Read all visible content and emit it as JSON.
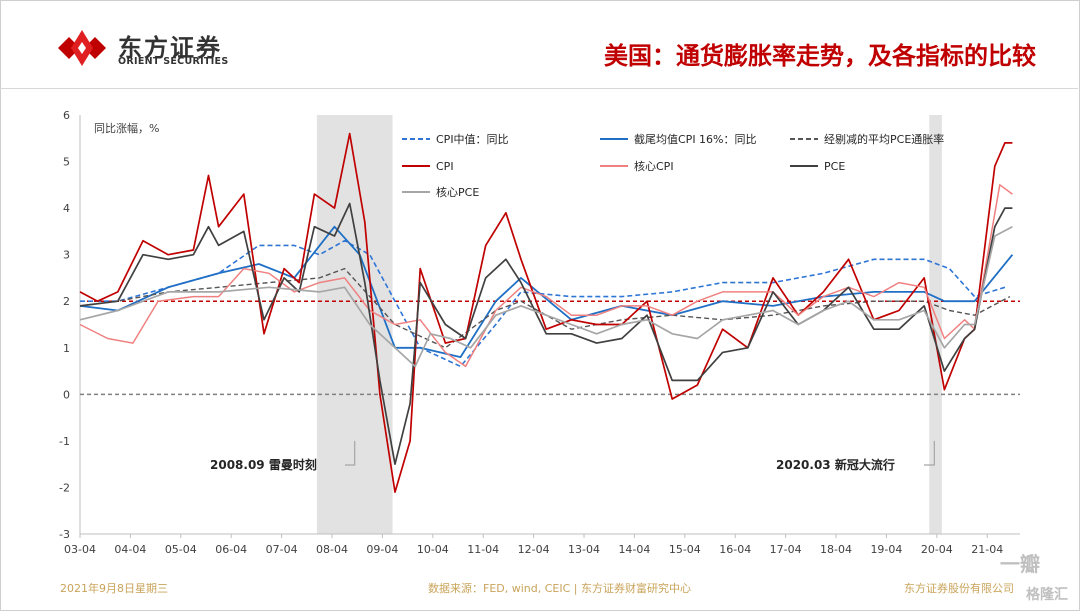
{
  "header": {
    "logo_cn": "东方证券",
    "logo_en": "ORIENT SECURITIES",
    "title": "美国：通货膨胀率走势，及各指标的比较"
  },
  "footer": {
    "date": "2021年9月8日星期三",
    "source": "数据来源：FED, wind, CEIC | 东方证券财富研究中心",
    "company": "东方证券股份有限公司"
  },
  "watermark": {
    "text1": "一瓣",
    "text2": "格隆汇"
  },
  "colors": {
    "brand_red": "#c00000",
    "cpi_median": "#2e75d6",
    "trimmed_cpi": "#1f6fc5",
    "trimmed_pce": "#555555",
    "cpi": "#c00000",
    "core_cpi": "#f08080",
    "pce": "#404040",
    "core_pce": "#a6a6a6",
    "recession": "#e2e2e2"
  },
  "chart_data": {
    "type": "line",
    "ylabel": "同比涨幅，%",
    "ylim": [
      -3,
      6
    ],
    "yticks": [
      -3,
      -2,
      -1,
      0,
      1,
      2,
      3,
      4,
      5,
      6
    ],
    "xlim": [
      2003.25,
      2021.9
    ],
    "xticks": [
      "03-04",
      "04-04",
      "05-04",
      "06-04",
      "07-04",
      "08-04",
      "09-04",
      "10-04",
      "11-04",
      "12-04",
      "13-04",
      "14-04",
      "15-04",
      "16-04",
      "17-04",
      "18-04",
      "19-04",
      "20-04",
      "21-04"
    ],
    "reference_lines": [
      {
        "value": 2,
        "style": "dashed",
        "color": "#c00000"
      },
      {
        "value": 0,
        "style": "dashed",
        "color": "#808080"
      }
    ],
    "recessions": [
      {
        "start": 2007.95,
        "end": 2009.45
      },
      {
        "start": 2020.1,
        "end": 2020.35
      }
    ],
    "annotations": [
      {
        "text": "2008.09 雷曼时刻",
        "x": 2008.7,
        "y": -1.6
      },
      {
        "text": "2020.03 新冠大流行",
        "x": 2020.2,
        "y": -1.6
      }
    ],
    "legend": [
      "CPI中值：同比",
      "截尾均值CPI 16%：同比",
      "经剔减的平均PCE通胀率",
      "CPI",
      "核心CPI",
      "PCE",
      "核心PCE"
    ],
    "series": [
      {
        "name": "CPI中值：同比",
        "color": "#2e75d6",
        "dash": "dashed",
        "width": 1.6,
        "points": [
          [
            2003.25,
            2.0
          ],
          [
            2004.0,
            2.0
          ],
          [
            2005.0,
            2.3
          ],
          [
            2006.0,
            2.6
          ],
          [
            2006.8,
            3.2
          ],
          [
            2007.5,
            3.2
          ],
          [
            2008.0,
            3.0
          ],
          [
            2008.5,
            3.3
          ],
          [
            2009.0,
            3.0
          ],
          [
            2009.5,
            2.0
          ],
          [
            2010.0,
            1.0
          ],
          [
            2010.8,
            0.6
          ],
          [
            2011.5,
            1.5
          ],
          [
            2012.0,
            2.2
          ],
          [
            2013.0,
            2.1
          ],
          [
            2014.0,
            2.1
          ],
          [
            2015.0,
            2.2
          ],
          [
            2016.0,
            2.4
          ],
          [
            2017.0,
            2.4
          ],
          [
            2018.0,
            2.6
          ],
          [
            2019.0,
            2.9
          ],
          [
            2020.0,
            2.9
          ],
          [
            2020.5,
            2.7
          ],
          [
            2021.0,
            2.1
          ],
          [
            2021.6,
            2.3
          ]
        ]
      },
      {
        "name": "截尾均值CPI 16%：同比",
        "color": "#1f6fc5",
        "dash": "solid",
        "width": 1.8,
        "points": [
          [
            2003.25,
            1.9
          ],
          [
            2004.0,
            1.8
          ],
          [
            2005.0,
            2.3
          ],
          [
            2006.0,
            2.6
          ],
          [
            2006.8,
            2.8
          ],
          [
            2007.5,
            2.5
          ],
          [
            2008.3,
            3.6
          ],
          [
            2008.8,
            3.0
          ],
          [
            2009.5,
            1.0
          ],
          [
            2010.0,
            1.0
          ],
          [
            2010.8,
            0.8
          ],
          [
            2011.5,
            2.0
          ],
          [
            2012.0,
            2.5
          ],
          [
            2013.0,
            1.6
          ],
          [
            2014.0,
            1.9
          ],
          [
            2015.0,
            1.7
          ],
          [
            2016.0,
            2.0
          ],
          [
            2017.0,
            1.9
          ],
          [
            2018.0,
            2.1
          ],
          [
            2019.0,
            2.2
          ],
          [
            2020.0,
            2.2
          ],
          [
            2020.4,
            2.0
          ],
          [
            2021.0,
            2.0
          ],
          [
            2021.75,
            3.0
          ]
        ]
      },
      {
        "name": "经剔减的平均PCE通胀率",
        "color": "#555555",
        "dash": "dashed",
        "width": 1.4,
        "points": [
          [
            2003.25,
            1.9
          ],
          [
            2004.0,
            2.0
          ],
          [
            2005.0,
            2.2
          ],
          [
            2006.0,
            2.3
          ],
          [
            2007.0,
            2.4
          ],
          [
            2008.0,
            2.5
          ],
          [
            2008.5,
            2.7
          ],
          [
            2009.5,
            1.5
          ],
          [
            2010.5,
            1.0
          ],
          [
            2011.5,
            1.8
          ],
          [
            2012.0,
            2.0
          ],
          [
            2013.0,
            1.4
          ],
          [
            2014.0,
            1.6
          ],
          [
            2015.0,
            1.7
          ],
          [
            2016.0,
            1.6
          ],
          [
            2017.0,
            1.7
          ],
          [
            2018.0,
            1.9
          ],
          [
            2019.0,
            2.0
          ],
          [
            2020.0,
            2.0
          ],
          [
            2020.5,
            1.8
          ],
          [
            2021.0,
            1.7
          ],
          [
            2021.7,
            2.1
          ]
        ]
      },
      {
        "name": "CPI",
        "color": "#c00000",
        "dash": "solid",
        "width": 1.7,
        "points": [
          [
            2003.25,
            2.2
          ],
          [
            2003.6,
            2.0
          ],
          [
            2004.0,
            2.2
          ],
          [
            2004.5,
            3.3
          ],
          [
            2005.0,
            3.0
          ],
          [
            2005.5,
            3.1
          ],
          [
            2005.8,
            4.7
          ],
          [
            2006.0,
            3.6
          ],
          [
            2006.5,
            4.3
          ],
          [
            2006.9,
            1.3
          ],
          [
            2007.3,
            2.7
          ],
          [
            2007.6,
            2.4
          ],
          [
            2007.9,
            4.3
          ],
          [
            2008.3,
            4.0
          ],
          [
            2008.6,
            5.6
          ],
          [
            2008.9,
            3.7
          ],
          [
            2009.2,
            0.0
          ],
          [
            2009.5,
            -2.1
          ],
          [
            2009.8,
            -1.0
          ],
          [
            2010.0,
            2.7
          ],
          [
            2010.5,
            1.1
          ],
          [
            2010.9,
            1.2
          ],
          [
            2011.3,
            3.2
          ],
          [
            2011.7,
            3.9
          ],
          [
            2012.0,
            2.9
          ],
          [
            2012.5,
            1.4
          ],
          [
            2013.0,
            1.6
          ],
          [
            2013.5,
            1.5
          ],
          [
            2014.0,
            1.5
          ],
          [
            2014.5,
            2.0
          ],
          [
            2015.0,
            -0.1
          ],
          [
            2015.5,
            0.2
          ],
          [
            2016.0,
            1.4
          ],
          [
            2016.5,
            1.0
          ],
          [
            2017.0,
            2.5
          ],
          [
            2017.5,
            1.7
          ],
          [
            2018.0,
            2.2
          ],
          [
            2018.5,
            2.9
          ],
          [
            2019.0,
            1.6
          ],
          [
            2019.5,
            1.8
          ],
          [
            2020.0,
            2.5
          ],
          [
            2020.4,
            0.1
          ],
          [
            2020.8,
            1.2
          ],
          [
            2021.0,
            1.4
          ],
          [
            2021.4,
            4.9
          ],
          [
            2021.6,
            5.4
          ],
          [
            2021.75,
            5.4
          ]
        ]
      },
      {
        "name": "核心CPI",
        "color": "#f08080",
        "dash": "solid",
        "width": 1.5,
        "points": [
          [
            2003.25,
            1.5
          ],
          [
            2003.8,
            1.2
          ],
          [
            2004.3,
            1.1
          ],
          [
            2004.8,
            2.0
          ],
          [
            2005.5,
            2.1
          ],
          [
            2006.0,
            2.1
          ],
          [
            2006.5,
            2.7
          ],
          [
            2007.0,
            2.6
          ],
          [
            2007.5,
            2.2
          ],
          [
            2008.0,
            2.4
          ],
          [
            2008.5,
            2.5
          ],
          [
            2009.0,
            1.8
          ],
          [
            2009.5,
            1.5
          ],
          [
            2010.0,
            1.6
          ],
          [
            2010.5,
            0.9
          ],
          [
            2010.9,
            0.6
          ],
          [
            2011.5,
            1.8
          ],
          [
            2012.0,
            2.3
          ],
          [
            2012.5,
            2.1
          ],
          [
            2013.0,
            1.7
          ],
          [
            2013.5,
            1.7
          ],
          [
            2014.0,
            1.9
          ],
          [
            2014.5,
            1.9
          ],
          [
            2015.0,
            1.7
          ],
          [
            2015.5,
            2.0
          ],
          [
            2016.0,
            2.2
          ],
          [
            2016.5,
            2.2
          ],
          [
            2017.0,
            2.2
          ],
          [
            2017.5,
            1.7
          ],
          [
            2018.0,
            2.1
          ],
          [
            2018.5,
            2.3
          ],
          [
            2019.0,
            2.1
          ],
          [
            2019.5,
            2.4
          ],
          [
            2020.0,
            2.3
          ],
          [
            2020.4,
            1.2
          ],
          [
            2020.8,
            1.6
          ],
          [
            2021.0,
            1.4
          ],
          [
            2021.5,
            4.5
          ],
          [
            2021.75,
            4.3
          ]
        ]
      },
      {
        "name": "PCE",
        "color": "#404040",
        "dash": "solid",
        "width": 1.7,
        "points": [
          [
            2003.25,
            1.9
          ],
          [
            2004.0,
            2.0
          ],
          [
            2004.5,
            3.0
          ],
          [
            2005.0,
            2.9
          ],
          [
            2005.5,
            3.0
          ],
          [
            2005.8,
            3.6
          ],
          [
            2006.0,
            3.2
          ],
          [
            2006.5,
            3.5
          ],
          [
            2006.9,
            1.6
          ],
          [
            2007.3,
            2.5
          ],
          [
            2007.6,
            2.2
          ],
          [
            2007.9,
            3.6
          ],
          [
            2008.3,
            3.4
          ],
          [
            2008.6,
            4.1
          ],
          [
            2008.9,
            2.4
          ],
          [
            2009.2,
            0.3
          ],
          [
            2009.5,
            -1.5
          ],
          [
            2009.8,
            -0.2
          ],
          [
            2010.0,
            2.4
          ],
          [
            2010.5,
            1.5
          ],
          [
            2010.9,
            1.2
          ],
          [
            2011.3,
            2.5
          ],
          [
            2011.7,
            2.9
          ],
          [
            2012.0,
            2.4
          ],
          [
            2012.5,
            1.3
          ],
          [
            2013.0,
            1.3
          ],
          [
            2013.5,
            1.1
          ],
          [
            2014.0,
            1.2
          ],
          [
            2014.5,
            1.7
          ],
          [
            2015.0,
            0.3
          ],
          [
            2015.5,
            0.3
          ],
          [
            2016.0,
            0.9
          ],
          [
            2016.5,
            1.0
          ],
          [
            2017.0,
            2.2
          ],
          [
            2017.5,
            1.5
          ],
          [
            2018.0,
            1.8
          ],
          [
            2018.5,
            2.3
          ],
          [
            2019.0,
            1.4
          ],
          [
            2019.5,
            1.4
          ],
          [
            2020.0,
            1.9
          ],
          [
            2020.4,
            0.5
          ],
          [
            2020.8,
            1.2
          ],
          [
            2021.0,
            1.4
          ],
          [
            2021.4,
            3.6
          ],
          [
            2021.6,
            4.0
          ],
          [
            2021.75,
            4.0
          ]
        ]
      },
      {
        "name": "核心PCE",
        "color": "#a6a6a6",
        "dash": "solid",
        "width": 1.7,
        "points": [
          [
            2003.25,
            1.6
          ],
          [
            2004.0,
            1.8
          ],
          [
            2005.0,
            2.2
          ],
          [
            2006.0,
            2.2
          ],
          [
            2007.0,
            2.3
          ],
          [
            2008.0,
            2.2
          ],
          [
            2008.5,
            2.3
          ],
          [
            2009.0,
            1.5
          ],
          [
            2009.5,
            1.0
          ],
          [
            2009.9,
            0.6
          ],
          [
            2010.2,
            1.3
          ],
          [
            2010.6,
            1.2
          ],
          [
            2011.0,
            1.0
          ],
          [
            2011.5,
            1.7
          ],
          [
            2012.0,
            1.9
          ],
          [
            2012.5,
            1.7
          ],
          [
            2013.0,
            1.5
          ],
          [
            2013.5,
            1.3
          ],
          [
            2014.0,
            1.5
          ],
          [
            2014.5,
            1.6
          ],
          [
            2015.0,
            1.3
          ],
          [
            2015.5,
            1.2
          ],
          [
            2016.0,
            1.6
          ],
          [
            2016.5,
            1.7
          ],
          [
            2017.0,
            1.8
          ],
          [
            2017.5,
            1.5
          ],
          [
            2018.0,
            1.8
          ],
          [
            2018.5,
            2.0
          ],
          [
            2019.0,
            1.6
          ],
          [
            2019.5,
            1.6
          ],
          [
            2020.0,
            1.8
          ],
          [
            2020.4,
            1.0
          ],
          [
            2020.8,
            1.5
          ],
          [
            2021.0,
            1.5
          ],
          [
            2021.4,
            3.4
          ],
          [
            2021.75,
            3.6
          ]
        ]
      }
    ]
  }
}
